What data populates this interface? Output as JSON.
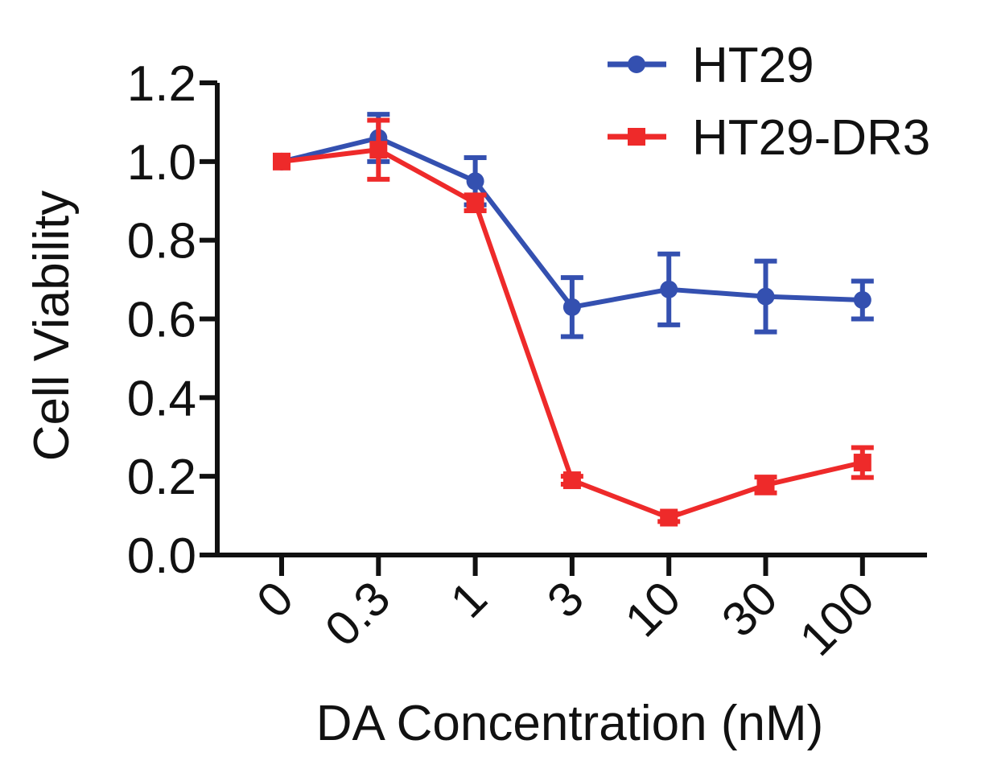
{
  "chart_data": {
    "type": "line",
    "title": "",
    "xlabel": "DA Concentration (nM)",
    "ylabel": "Cell Viability",
    "categories": [
      "0",
      "0.3",
      "1",
      "3",
      "10",
      "30",
      "100"
    ],
    "ylim": [
      0,
      1.2
    ],
    "yticks": [
      "0.0",
      "0.2",
      "0.4",
      "0.6",
      "0.8",
      "1.0",
      "1.2"
    ],
    "ytick_values": [
      0,
      0.2,
      0.4,
      0.6,
      0.8,
      1.0,
      1.2
    ],
    "grid": false,
    "legend_position": "top-right",
    "series": [
      {
        "name": "HT29",
        "color": "#3450b0",
        "marker": "circle",
        "values": [
          1.0,
          1.06,
          0.95,
          0.63,
          0.675,
          0.657,
          0.648
        ],
        "errors": [
          0.0,
          0.06,
          0.06,
          0.075,
          0.09,
          0.09,
          0.048
        ]
      },
      {
        "name": "HT29-DR3",
        "color": "#ee2a2a",
        "marker": "square",
        "values": [
          1.0,
          1.03,
          0.895,
          0.19,
          0.095,
          0.178,
          0.235
        ],
        "errors": [
          0.0,
          0.075,
          0.02,
          0.01,
          0.01,
          0.02,
          0.038
        ]
      }
    ]
  }
}
